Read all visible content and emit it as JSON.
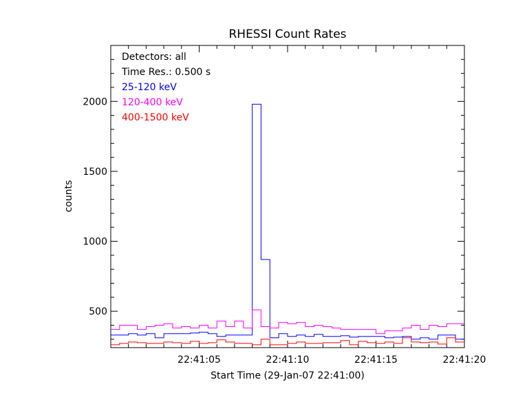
{
  "chart_data": {
    "type": "line",
    "title": "RHESSI Count Rates",
    "xlabel": "Start Time (29-Jan-07 22:41:00)",
    "ylabel": "counts",
    "xlim": [
      0,
      20
    ],
    "ylim": [
      240,
      2400
    ],
    "x_ticks": [
      {
        "value": 5,
        "label": "22:41:05"
      },
      {
        "value": 10,
        "label": "22:41:10"
      },
      {
        "value": 15,
        "label": "22:41:15"
      },
      {
        "value": 20,
        "label": "22:41:20"
      }
    ],
    "y_ticks": [
      {
        "value": 500,
        "label": "500"
      },
      {
        "value": 1000,
        "label": "1000"
      },
      {
        "value": 1500,
        "label": "1500"
      },
      {
        "value": 2000,
        "label": "2000"
      }
    ],
    "annotations": [
      "Detectors: all",
      "Time Res.: 0.500 s"
    ],
    "bin_width": 0.5,
    "x_start": 0,
    "series": [
      {
        "name": "25-120 keV",
        "color": "#0000ff",
        "values": [
          330,
          330,
          340,
          330,
          340,
          310,
          340,
          340,
          340,
          345,
          350,
          340,
          320,
          330,
          330,
          330,
          1980,
          870,
          310,
          340,
          320,
          330,
          320,
          335,
          320,
          320,
          325,
          315,
          320,
          320,
          320,
          310,
          315,
          320,
          300,
          310,
          300,
          330,
          330,
          300
        ]
      },
      {
        "name": "120-400 keV",
        "color": "#ff00ff",
        "values": [
          370,
          400,
          400,
          370,
          390,
          400,
          410,
          380,
          390,
          380,
          400,
          380,
          430,
          390,
          430,
          380,
          510,
          390,
          380,
          420,
          410,
          420,
          390,
          400,
          390,
          380,
          370,
          370,
          370,
          370,
          340,
          360,
          360,
          380,
          400,
          370,
          400,
          390,
          410,
          410
        ]
      },
      {
        "name": "400-1500 keV",
        "color": "#ff0000",
        "values": [
          260,
          270,
          280,
          275,
          270,
          270,
          280,
          275,
          270,
          285,
          270,
          275,
          295,
          280,
          270,
          270,
          260,
          300,
          260,
          260,
          270,
          280,
          270,
          270,
          275,
          275,
          290,
          260,
          285,
          275,
          270,
          280,
          270,
          310,
          280,
          275,
          280,
          265,
          310,
          280
        ]
      }
    ]
  }
}
